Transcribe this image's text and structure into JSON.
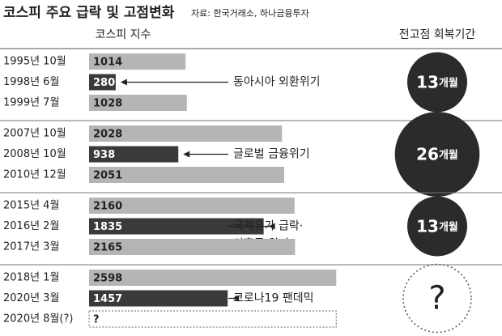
{
  "chart_data": {
    "type": "bar",
    "title": "코스피 주요 급락 및 고점변화",
    "source": "자료: 한국거래소, 하나금융투자",
    "value_header": "코스피 지수",
    "recovery_header": "전고점 회복기간",
    "color": "#b5b5b5",
    "highlight_color": "#3a3a3a",
    "circle_color": "#2b2b2b",
    "groups": [
      {
        "categories": [
          "1995년 10월",
          "1998년 6월",
          "1999년 7월"
        ],
        "values": [
          1014,
          280,
          1028
        ],
        "highlight": 1,
        "annotation": [
          "동아시아 외환위기"
        ],
        "recovery": 13,
        "recovery_unit": "개월"
      },
      {
        "categories": [
          "2007년 10월",
          "2008년 10월",
          "2010년 12월"
        ],
        "values": [
          2028,
          938,
          2051
        ],
        "highlight": 1,
        "annotation": [
          "글로벌 금융위기"
        ],
        "recovery": 26,
        "recovery_unit": "개월"
      },
      {
        "categories": [
          "2015년 4월",
          "2016년 2월",
          "2017년 3월"
        ],
        "values": [
          2160,
          1835,
          2165
        ],
        "highlight": 1,
        "annotation": [
          "국제유가 급락·",
          "신흥국 위기"
        ],
        "recovery": 13,
        "recovery_unit": "개월"
      },
      {
        "categories": [
          "2018년 1월",
          "2020년 3월",
          "2020년 8월(?)"
        ],
        "values": [
          2598,
          1457,
          null
        ],
        "value_labels": [
          "2598",
          "1457",
          "?"
        ],
        "highlight": 1,
        "annotation": [
          "코로나19 팬데믹"
        ],
        "recovery": null,
        "recovery_label": "?"
      }
    ]
  }
}
